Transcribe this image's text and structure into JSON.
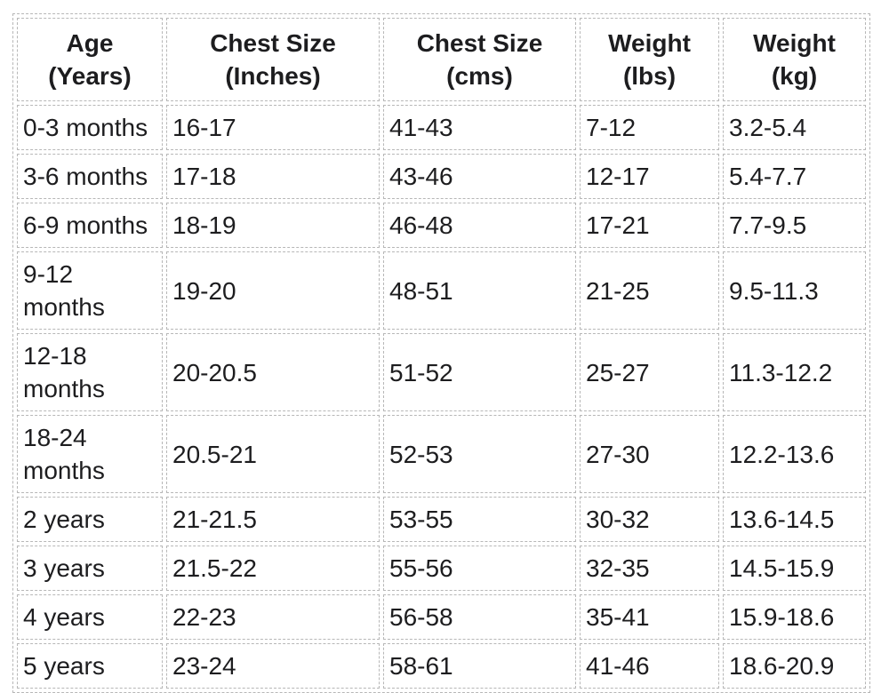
{
  "colors": {
    "background": "#ffffff",
    "text": "#1d1d1f",
    "table_border": "#b7b7b7"
  },
  "chart_data": {
    "type": "table",
    "title": "",
    "columns": [
      "Age (Years)",
      "Chest Size (Inches)",
      "Chest Size (cms)",
      "Weight (lbs)",
      "Weight (kg)"
    ],
    "header_display": [
      {
        "line1": "Age",
        "line2": "(Years)"
      },
      {
        "line1": "Chest Size",
        "line2": "(Inches)"
      },
      {
        "line1": "Chest Size",
        "line2": "(cms)"
      },
      {
        "line1": "Weight",
        "line2": "(lbs)"
      },
      {
        "line1": "Weight",
        "line2": "(kg)"
      }
    ],
    "rows": [
      [
        "0-3 months",
        "16-17",
        "41-43",
        "7-12",
        "3.2-5.4"
      ],
      [
        "3-6 months",
        "17-18",
        "43-46",
        "12-17",
        "5.4-7.7"
      ],
      [
        "6-9 months",
        "18-19",
        "46-48",
        "17-21",
        "7.7-9.5"
      ],
      [
        "9-12 months",
        "19-20",
        "48-51",
        "21-25",
        "9.5-11.3"
      ],
      [
        "12-18 months",
        "20-20.5",
        "51-52",
        "25-27",
        "11.3-12.2"
      ],
      [
        "18-24 months",
        "20.5-21",
        "52-53",
        "27-30",
        "12.2-13.6"
      ],
      [
        "2 years",
        "21-21.5",
        "53-55",
        "30-32",
        "13.6-14.5"
      ],
      [
        "3 years",
        "21.5-22",
        "55-56",
        "32-35",
        "14.5-15.9"
      ],
      [
        "4 years",
        "22-23",
        "56-58",
        "35-41",
        "15.9-18.6"
      ],
      [
        "5 years",
        "23-24",
        "58-61",
        "41-46",
        "18.6-20.9"
      ]
    ]
  }
}
